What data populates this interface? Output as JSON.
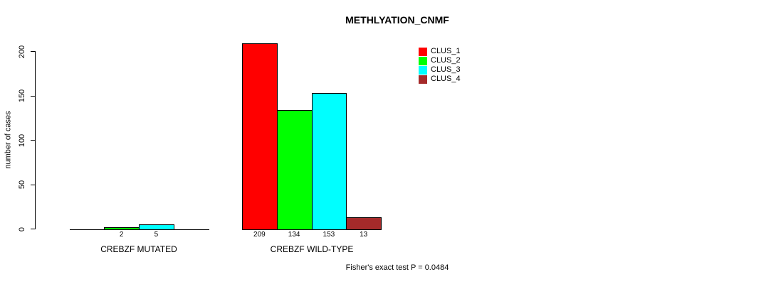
{
  "title": "METHLYATION_CNMF",
  "y_axis": {
    "label": "number of cases",
    "ticks": [
      "0",
      "50",
      "100",
      "150",
      "200"
    ]
  },
  "footer": "Fisher's exact test P = 0.0484",
  "legend": {
    "items": [
      {
        "label": "CLUS_1",
        "color": "#FF0000"
      },
      {
        "label": "CLUS_2",
        "color": "#00FF00"
      },
      {
        "label": "CLUS_3",
        "color": "#00FFFF"
      },
      {
        "label": "CLUS_4",
        "color": "#A52A2A"
      }
    ]
  },
  "chart_data": {
    "type": "bar",
    "title": "METHLYATION_CNMF",
    "ylabel": "number of cases",
    "xlabel": "",
    "categories": [
      "CREBZF MUTATED",
      "CREBZF WILD-TYPE"
    ],
    "series": [
      {
        "name": "CLUS_1",
        "color": "#FF0000",
        "values": [
          0,
          209
        ]
      },
      {
        "name": "CLUS_2",
        "color": "#00FF00",
        "values": [
          2,
          134
        ]
      },
      {
        "name": "CLUS_3",
        "color": "#00FFFF",
        "values": [
          5,
          153
        ]
      },
      {
        "name": "CLUS_4",
        "color": "#A52A2A",
        "values": [
          0,
          13
        ]
      }
    ],
    "bar_value_labels": [
      [
        "",
        "2",
        "5",
        ""
      ],
      [
        "209",
        "134",
        "153",
        "13"
      ]
    ],
    "ylim": [
      0,
      200
    ],
    "yticks": [
      0,
      50,
      100,
      150,
      200
    ],
    "grid": false,
    "legend_position": "top-right",
    "annotation": "Fisher's exact test P = 0.0484"
  }
}
